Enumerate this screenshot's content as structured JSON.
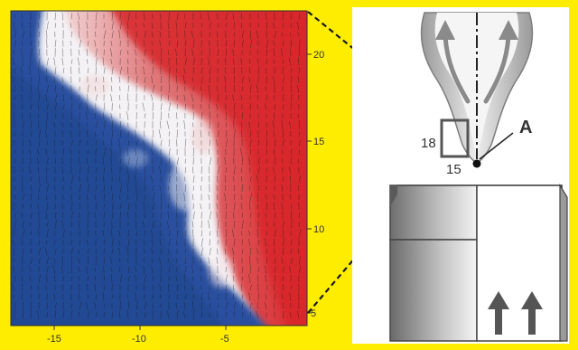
{
  "plot": {
    "x_ticks": [
      "-15",
      "-10",
      "-5"
    ],
    "y_ticks": [
      "20",
      "15",
      "10",
      "5"
    ]
  },
  "schematic": {
    "point_label": "A",
    "box_height_label": "18",
    "box_width_label": "15"
  },
  "colors": {
    "background": "#ffed00",
    "cold": "#2a4e9e",
    "hot": "#d92a2e",
    "neutral": "#f3f1f4",
    "schematic_gray": "#8a8a8a"
  }
}
